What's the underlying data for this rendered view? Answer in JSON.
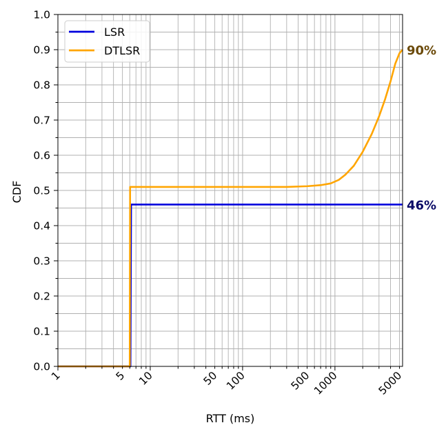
{
  "chart_data": {
    "type": "line",
    "xlabel": "RTT (ms)",
    "ylabel": "CDF",
    "xscale": "log",
    "xlim": [
      1,
      5400
    ],
    "ylim": [
      0,
      1
    ],
    "xticks": [
      {
        "value": 1,
        "label": "1"
      },
      {
        "value": 5,
        "label": "5"
      },
      {
        "value": 10,
        "label": "10"
      },
      {
        "value": 50,
        "label": "50"
      },
      {
        "value": 100,
        "label": "100"
      },
      {
        "value": 500,
        "label": "500"
      },
      {
        "value": 1000,
        "label": "1000"
      },
      {
        "value": 5000,
        "label": "5000"
      }
    ],
    "yticks": [
      "0.0",
      "0.1",
      "0.2",
      "0.3",
      "0.4",
      "0.5",
      "0.6",
      "0.7",
      "0.8",
      "0.9",
      "1.0"
    ],
    "grid": "major and minor",
    "legend_position": "top-left",
    "series": [
      {
        "name": "LSR",
        "color": "#0000dd",
        "end_label": "46%",
        "end_label_color": "#0a0a66",
        "points": [
          [
            1,
            0
          ],
          [
            6.1,
            0
          ],
          [
            6.2,
            0.46
          ],
          [
            5400,
            0.46
          ]
        ]
      },
      {
        "name": "DTLSR",
        "color": "#ffa500",
        "end_label": "90%",
        "end_label_color": "#6b4a0a",
        "points": [
          [
            1,
            0
          ],
          [
            6.0,
            0
          ],
          [
            6.05,
            0.51
          ],
          [
            100,
            0.51
          ],
          [
            300,
            0.51
          ],
          [
            500,
            0.512
          ],
          [
            700,
            0.515
          ],
          [
            900,
            0.52
          ],
          [
            1100,
            0.53
          ],
          [
            1300,
            0.545
          ],
          [
            1600,
            0.57
          ],
          [
            2000,
            0.61
          ],
          [
            2500,
            0.66
          ],
          [
            3000,
            0.71
          ],
          [
            3500,
            0.76
          ],
          [
            4000,
            0.81
          ],
          [
            4500,
            0.86
          ],
          [
            5000,
            0.89
          ],
          [
            5400,
            0.9
          ]
        ]
      }
    ]
  }
}
